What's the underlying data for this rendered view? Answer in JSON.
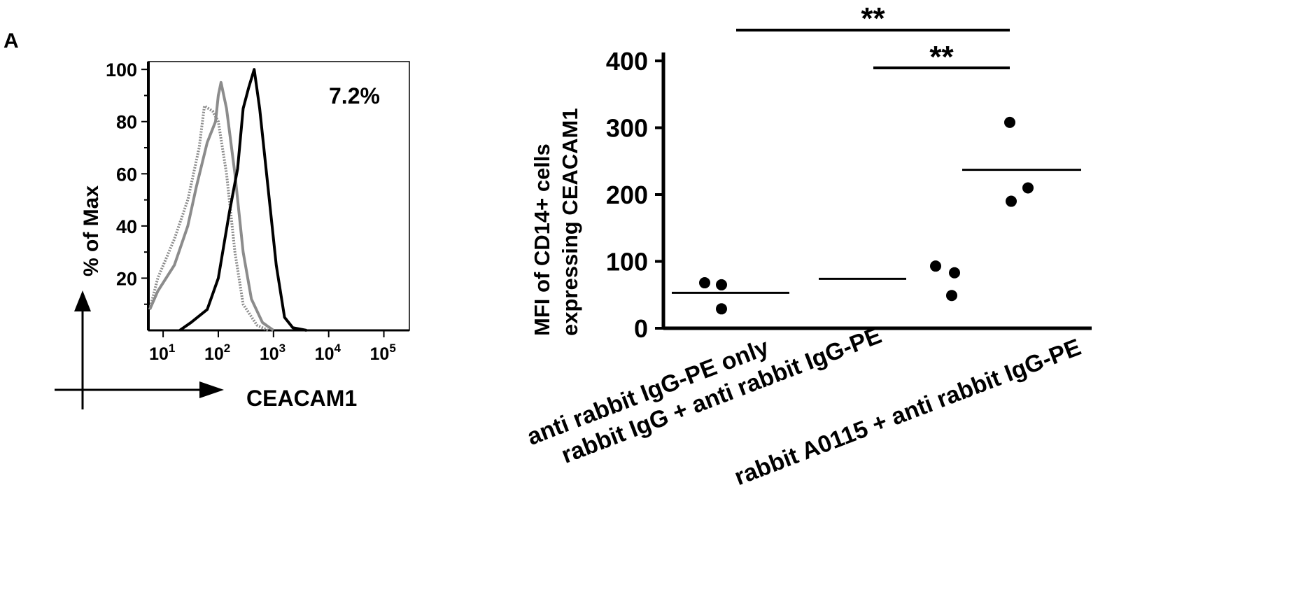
{
  "panel_label": "A",
  "chart_data": [
    {
      "type": "line",
      "ylabel": "% of Max",
      "xlabel": "CEACAM1",
      "x_scale": "log",
      "xlim": [
        5.4,
        290000
      ],
      "ylim": [
        0,
        103
      ],
      "yticks": [
        20,
        40,
        60,
        80,
        100
      ],
      "xticks": [
        {
          "value": 10,
          "label": "10",
          "exp": "1"
        },
        {
          "value": 100,
          "label": "10",
          "exp": "2"
        },
        {
          "value": 1000,
          "label": "10",
          "exp": "3"
        },
        {
          "value": 10000,
          "label": "10",
          "exp": "4"
        },
        {
          "value": 100000,
          "label": "10",
          "exp": "5"
        }
      ],
      "annotation": "7.2%",
      "grid": false,
      "series": [
        {
          "style": "dotted",
          "color": "#8c8c8c",
          "x": [
            5.4,
            8,
            16,
            28,
            45,
            56,
            79,
            100,
            141,
            200,
            282,
            501,
            794
          ],
          "y": [
            8,
            20,
            35,
            50,
            70,
            86,
            84,
            80,
            60,
            30,
            10,
            2,
            0
          ]
        },
        {
          "style": "solid",
          "color": "#8c8c8c",
          "x": [
            5.4,
            8,
            16,
            28,
            40,
            63,
            89,
            100,
            112,
            141,
            200,
            282,
            398,
            631,
            1000
          ],
          "y": [
            8,
            15,
            25,
            40,
            55,
            72,
            80,
            90,
            95,
            85,
            60,
            30,
            12,
            3,
            0
          ]
        },
        {
          "style": "solid",
          "color": "#000000",
          "x": [
            20,
            32,
            63,
            100,
            158,
            224,
            282,
            355,
            447,
            562,
            794,
            1122,
            1585,
            2239,
            3981
          ],
          "y": [
            0,
            3,
            8,
            20,
            45,
            62,
            85,
            93,
            100,
            85,
            55,
            25,
            5,
            1,
            0
          ]
        }
      ]
    },
    {
      "type": "scatter",
      "ylabel_lines": [
        "MFI of CD14+ cells",
        "expressing CEACAM1"
      ],
      "ylim": [
        0,
        400
      ],
      "yticks": [
        0,
        100,
        200,
        300,
        400
      ],
      "categories": [
        "anti rabbit IgG-PE only",
        "rabbit IgG + anti rabbit IgG-PE",
        "rabbit A0115 + anti rabbit IgG-PE"
      ],
      "points": [
        [
          68,
          65,
          29
        ],
        [
          93,
          83,
          49
        ],
        [
          308,
          210,
          190
        ]
      ],
      "means": [
        53,
        74,
        237
      ],
      "grid": false,
      "significance": [
        {
          "from": 0,
          "to": 2,
          "label": "**"
        },
        {
          "from": 1,
          "to": 2,
          "label": "**"
        }
      ]
    }
  ]
}
